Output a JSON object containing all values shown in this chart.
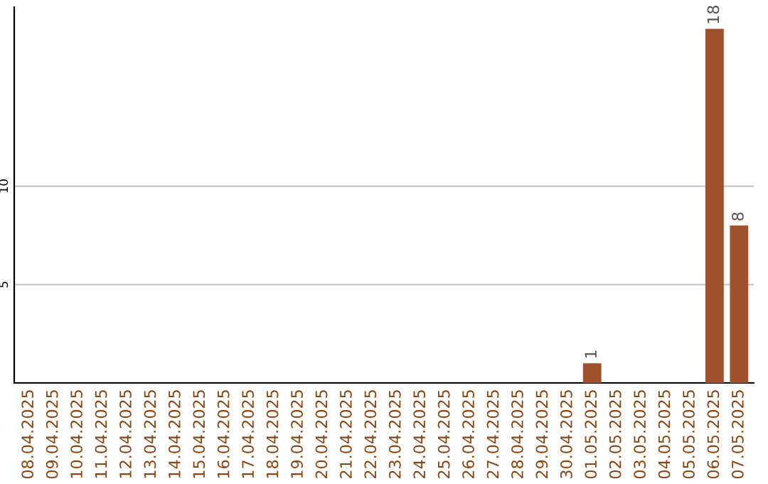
{
  "chart_data": {
    "type": "bar",
    "categories": [
      "08.04.2025",
      "09.04.2025",
      "10.04.2025",
      "11.04.2025",
      "12.04.2025",
      "13.04.2025",
      "14.04.2025",
      "15.04.2025",
      "16.04.2025",
      "17.04.2025",
      "18.04.2025",
      "19.04.2025",
      "20.04.2025",
      "21.04.2025",
      "22.04.2025",
      "23.04.2025",
      "24.04.2025",
      "25.04.2025",
      "26.04.2025",
      "27.04.2025",
      "28.04.2025",
      "29.04.2025",
      "30.04.2025",
      "01.05.2025",
      "02.05.2025",
      "03.05.2025",
      "04.05.2025",
      "05.05.2025",
      "06.05.2025",
      "07.05.2025"
    ],
    "values": [
      0,
      0,
      0,
      0,
      0,
      0,
      0,
      0,
      0,
      0,
      0,
      0,
      0,
      0,
      0,
      0,
      0,
      0,
      0,
      0,
      0,
      0,
      0,
      1,
      0,
      0,
      0,
      0,
      18,
      8
    ],
    "value_labels": [
      null,
      null,
      null,
      null,
      null,
      null,
      null,
      null,
      null,
      null,
      null,
      null,
      null,
      null,
      null,
      null,
      null,
      null,
      null,
      null,
      null,
      null,
      null,
      "1",
      null,
      null,
      null,
      null,
      "18",
      "8"
    ],
    "color": "#a0522d",
    "ylim": [
      0,
      19.1
    ],
    "yticks": [
      5,
      10
    ],
    "grid": "y"
  }
}
